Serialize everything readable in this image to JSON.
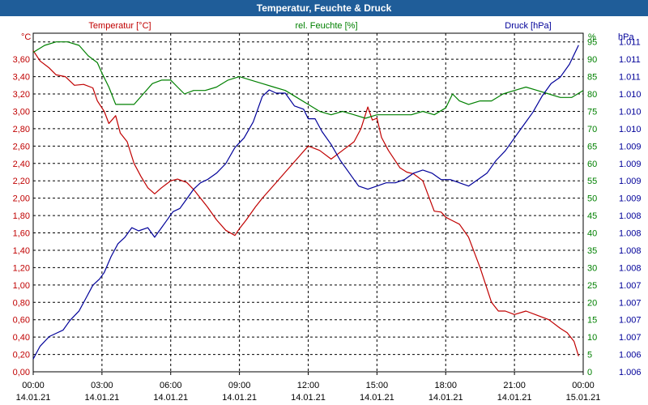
{
  "window": {
    "title": "Temperatur, Feuchte & Druck"
  },
  "colors": {
    "temperature": "#c00000",
    "humidity": "#008000",
    "pressure": "#000099",
    "title_bar": "#1f5d99",
    "grid": "#000000"
  },
  "chart_data": {
    "type": "line",
    "title": "Temperatur, Feuchte & Druck",
    "x_labels": [
      {
        "time": "00:00",
        "date": "14.01.21"
      },
      {
        "time": "03:00",
        "date": "14.01.21"
      },
      {
        "time": "06:00",
        "date": "14.01.21"
      },
      {
        "time": "09:00",
        "date": "14.01.21"
      },
      {
        "time": "12:00",
        "date": "14.01.21"
      },
      {
        "time": "15:00",
        "date": "14.01.21"
      },
      {
        "time": "18:00",
        "date": "14.01.21"
      },
      {
        "time": "21:00",
        "date": "14.01.21"
      },
      {
        "time": "00:00",
        "date": "15.01.21"
      }
    ],
    "xlim_hours": [
      0,
      24
    ],
    "axes": {
      "temperature": {
        "unit": "°C",
        "label": "Temperatur [°C]",
        "ylim": [
          0,
          3.8
        ],
        "ticks": [
          "0,00",
          "0,20",
          "0,40",
          "0,60",
          "0,80",
          "1,00",
          "1,20",
          "1,40",
          "1,60",
          "1,80",
          "2,00",
          "2,20",
          "2,40",
          "2,60",
          "2,80",
          "3,00",
          "3,20",
          "3,40",
          "3,60"
        ]
      },
      "humidity": {
        "unit": "%",
        "label": "rel. Feuchte [%]",
        "ylim": [
          0,
          95
        ],
        "ticks": [
          "0",
          "5",
          "10",
          "15",
          "20",
          "25",
          "30",
          "35",
          "40",
          "45",
          "50",
          "55",
          "60",
          "65",
          "70",
          "75",
          "80",
          "85",
          "90",
          "95"
        ]
      },
      "pressure": {
        "unit": "hPa",
        "label": "Druck [hPa]",
        "ylim": [
          1005.95,
          1011.1
        ],
        "ticks": [
          "1.006",
          "1.006",
          "1.007",
          "1.007",
          "1.007",
          "1.007",
          "1.008",
          "1.008",
          "1.008",
          "1.008",
          "1.009",
          "1.009",
          "1.009",
          "1.009",
          "1.010",
          "1.010",
          "1.010",
          "1.011",
          "1.011",
          "1.011"
        ]
      }
    },
    "series": [
      {
        "name": "Temperatur",
        "axis": "temperature",
        "x": [
          0,
          0.3,
          0.7,
          1.0,
          1.4,
          1.8,
          2.2,
          2.6,
          2.8,
          3.1,
          3.3,
          3.6,
          3.8,
          4.1,
          4.4,
          4.7,
          5.0,
          5.3,
          5.6,
          5.8,
          6.0,
          6.3,
          6.7,
          7.0,
          7.3,
          7.6,
          8.0,
          8.4,
          8.8,
          9.0,
          9.3,
          9.7,
          10.0,
          10.5,
          11.0,
          11.5,
          12.0,
          12.5,
          13.0,
          13.5,
          14.0,
          14.3,
          14.6,
          14.8,
          15.0,
          15.2,
          15.5,
          16.0,
          16.3,
          16.6,
          17.0,
          17.5,
          17.8,
          18.0,
          18.3,
          18.6,
          19.0,
          19.5,
          20.0,
          20.3,
          20.6,
          21.0,
          21.5,
          22.0,
          22.5,
          23.0,
          23.3,
          23.6,
          23.8
        ],
        "values": [
          3.7,
          3.58,
          3.5,
          3.42,
          3.4,
          3.3,
          3.31,
          3.27,
          3.12,
          3.0,
          2.86,
          2.95,
          2.75,
          2.65,
          2.4,
          2.25,
          2.12,
          2.05,
          2.12,
          2.16,
          2.2,
          2.22,
          2.18,
          2.1,
          2.0,
          1.9,
          1.75,
          1.63,
          1.57,
          1.65,
          1.75,
          1.9,
          2.0,
          2.15,
          2.3,
          2.45,
          2.6,
          2.55,
          2.45,
          2.55,
          2.65,
          2.8,
          3.05,
          2.9,
          2.92,
          2.7,
          2.55,
          2.35,
          2.3,
          2.28,
          2.2,
          1.85,
          1.84,
          1.78,
          1.74,
          1.7,
          1.55,
          1.2,
          0.8,
          0.7,
          0.7,
          0.66,
          0.7,
          0.65,
          0.6,
          0.5,
          0.45,
          0.35,
          0.18
        ]
      },
      {
        "name": "rel. Feuchte",
        "axis": "humidity",
        "x": [
          0,
          0.5,
          1.0,
          1.5,
          2.0,
          2.4,
          2.8,
          3.0,
          3.3,
          3.6,
          4.0,
          4.4,
          4.8,
          5.2,
          5.6,
          6.0,
          6.3,
          6.6,
          7.0,
          7.5,
          8.0,
          8.5,
          9.0,
          9.5,
          10.0,
          10.5,
          11.0,
          11.5,
          12.0,
          12.5,
          13.0,
          13.5,
          14.0,
          14.5,
          15.0,
          15.5,
          16.0,
          16.5,
          17.0,
          17.5,
          18.0,
          18.3,
          18.6,
          19.0,
          19.5,
          20.0,
          20.5,
          21.0,
          21.5,
          22.0,
          22.5,
          23.0,
          23.5,
          24.0
        ],
        "values": [
          92,
          94,
          95,
          95,
          94,
          91,
          89,
          86,
          82,
          77,
          77,
          77,
          80,
          83,
          84,
          84,
          82,
          80,
          81,
          81,
          82,
          84,
          85,
          84,
          83,
          82,
          81,
          79,
          77,
          75,
          74,
          75,
          74,
          73,
          74,
          74,
          74,
          74,
          75,
          74,
          76,
          80,
          78,
          77,
          78,
          78,
          80,
          81,
          82,
          81,
          80,
          79,
          79,
          81
        ]
      },
      {
        "name": "Druck",
        "axis": "pressure",
        "x": [
          0,
          0.3,
          0.7,
          1.0,
          1.3,
          1.6,
          2.0,
          2.3,
          2.6,
          2.9,
          3.1,
          3.4,
          3.7,
          4.0,
          4.3,
          4.6,
          5.0,
          5.3,
          5.6,
          5.8,
          6.1,
          6.4,
          6.7,
          7.0,
          7.3,
          7.6,
          8.0,
          8.4,
          8.8,
          9.2,
          9.6,
          10.0,
          10.3,
          10.6,
          11.0,
          11.4,
          11.8,
          12.0,
          12.3,
          12.6,
          13.0,
          13.4,
          13.8,
          14.2,
          14.6,
          15.0,
          15.4,
          15.8,
          16.2,
          16.6,
          17.0,
          17.4,
          17.8,
          18.2,
          18.6,
          19.0,
          19.4,
          19.8,
          20.2,
          20.6,
          21.0,
          21.4,
          21.8,
          22.2,
          22.6,
          23.0,
          23.4,
          23.8
        ],
        "values": [
          1006.15,
          1006.35,
          1006.5,
          1006.55,
          1006.6,
          1006.75,
          1006.9,
          1007.1,
          1007.3,
          1007.4,
          1007.5,
          1007.75,
          1007.95,
          1008.05,
          1008.2,
          1008.15,
          1008.2,
          1008.05,
          1008.2,
          1008.3,
          1008.45,
          1008.5,
          1008.65,
          1008.8,
          1008.9,
          1008.95,
          1009.05,
          1009.2,
          1009.45,
          1009.6,
          1009.85,
          1010.25,
          1010.35,
          1010.3,
          1010.3,
          1010.1,
          1010.05,
          1009.9,
          1009.9,
          1009.7,
          1009.5,
          1009.25,
          1009.05,
          1008.85,
          1008.8,
          1008.85,
          1008.9,
          1008.9,
          1008.95,
          1009.05,
          1009.1,
          1009.05,
          1008.95,
          1008.95,
          1008.9,
          1008.85,
          1008.95,
          1009.05,
          1009.25,
          1009.4,
          1009.6,
          1009.8,
          1010.0,
          1010.25,
          1010.45,
          1010.55,
          1010.75,
          1011.05
        ]
      }
    ]
  }
}
